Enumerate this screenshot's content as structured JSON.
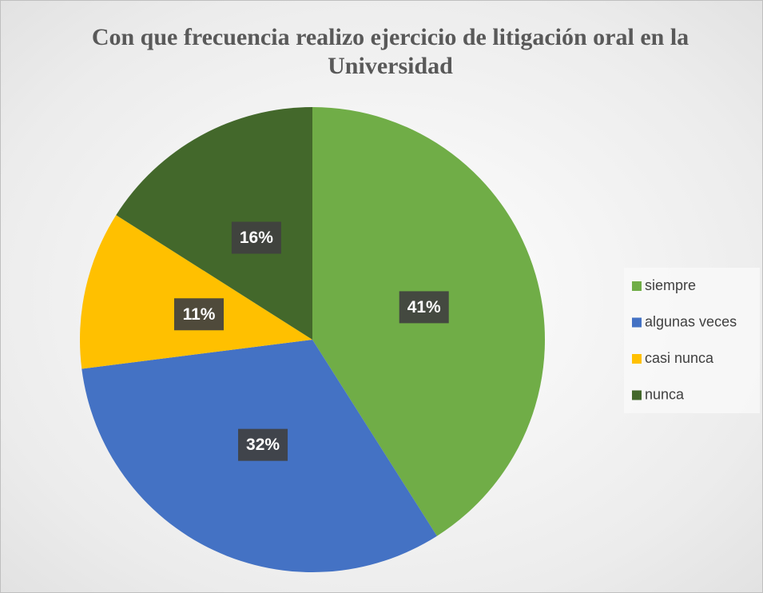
{
  "chart_data": {
    "type": "pie",
    "title": "Con que frecuencia realizo ejercicio de litigación oral en la Universidad",
    "categories": [
      "siempre",
      "algunas veces",
      "casi nunca",
      "nunca"
    ],
    "values": [
      41,
      32,
      11,
      16
    ],
    "value_labels": [
      "41%",
      "32%",
      "11%",
      "16%"
    ],
    "colors": [
      "#70ad47",
      "#4472c4",
      "#ffc000",
      "#43682b"
    ],
    "legend": "right"
  }
}
